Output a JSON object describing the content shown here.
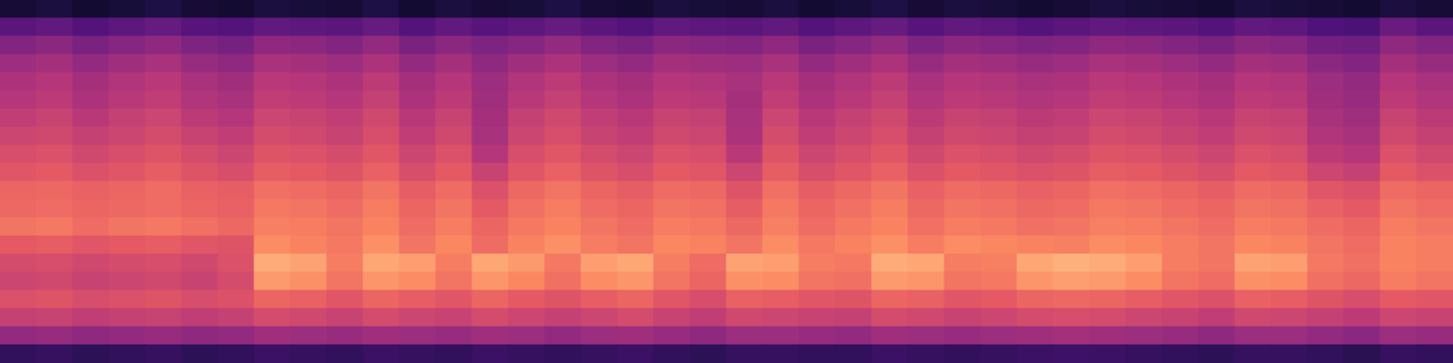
{
  "chart_data": {
    "type": "heatmap",
    "tick_labels": false,
    "zlim": [
      0,
      100
    ],
    "cells": [
      [
        10,
        12,
        9,
        11,
        13,
        10,
        9,
        12,
        11,
        10,
        13,
        9,
        12,
        10,
        11,
        13,
        10,
        9,
        12,
        11,
        10,
        12,
        9,
        11,
        13,
        10,
        12,
        11,
        9,
        10,
        12,
        11,
        10,
        9,
        12,
        11,
        10,
        9,
        12,
        10
      ],
      [
        28,
        30,
        26,
        29,
        31,
        27,
        26,
        30,
        29,
        28,
        31,
        26,
        30,
        27,
        29,
        31,
        28,
        26,
        30,
        29,
        28,
        30,
        26,
        29,
        31,
        27,
        30,
        29,
        26,
        28,
        30,
        29,
        28,
        26,
        30,
        29,
        25,
        24,
        32,
        28
      ],
      [
        38,
        40,
        36,
        39,
        41,
        37,
        35,
        41,
        40,
        38,
        42,
        36,
        40,
        37,
        39,
        42,
        38,
        36,
        40,
        39,
        38,
        41,
        36,
        39,
        42,
        37,
        40,
        39,
        37,
        38,
        41,
        40,
        38,
        36,
        40,
        39,
        34,
        33,
        41,
        38
      ],
      [
        44,
        46,
        42,
        45,
        47,
        43,
        41,
        47,
        46,
        44,
        48,
        42,
        46,
        41,
        45,
        48,
        44,
        42,
        46,
        45,
        44,
        47,
        42,
        45,
        48,
        43,
        46,
        45,
        43,
        44,
        47,
        46,
        44,
        42,
        46,
        45,
        40,
        38,
        46,
        43
      ],
      [
        48,
        50,
        46,
        49,
        51,
        47,
        45,
        51,
        50,
        48,
        52,
        46,
        50,
        44,
        49,
        52,
        48,
        46,
        50,
        49,
        47,
        51,
        46,
        49,
        52,
        47,
        50,
        49,
        47,
        48,
        51,
        50,
        48,
        46,
        50,
        49,
        44,
        42,
        50,
        47
      ],
      [
        50,
        52,
        48,
        51,
        53,
        49,
        47,
        53,
        52,
        50,
        54,
        48,
        52,
        45,
        51,
        54,
        50,
        48,
        52,
        51,
        46,
        53,
        48,
        51,
        54,
        49,
        52,
        51,
        49,
        50,
        53,
        52,
        50,
        48,
        52,
        51,
        45,
        43,
        52,
        49
      ],
      [
        53,
        55,
        51,
        54,
        56,
        52,
        50,
        56,
        55,
        53,
        57,
        51,
        55,
        46,
        54,
        57,
        53,
        51,
        55,
        54,
        47,
        56,
        51,
        54,
        57,
        52,
        55,
        54,
        52,
        53,
        56,
        55,
        53,
        51,
        55,
        54,
        47,
        45,
        55,
        52
      ],
      [
        56,
        57,
        54,
        56,
        58,
        55,
        53,
        58,
        57,
        55,
        59,
        53,
        57,
        47,
        56,
        59,
        55,
        53,
        57,
        56,
        48,
        58,
        53,
        56,
        59,
        54,
        57,
        56,
        54,
        55,
        58,
        57,
        55,
        53,
        57,
        56,
        49,
        47,
        57,
        54
      ],
      [
        59,
        60,
        57,
        59,
        61,
        58,
        56,
        61,
        60,
        58,
        62,
        56,
        60,
        50,
        59,
        62,
        58,
        56,
        60,
        59,
        51,
        61,
        56,
        59,
        62,
        57,
        60,
        59,
        57,
        58,
        61,
        60,
        58,
        56,
        60,
        59,
        52,
        50,
        60,
        57
      ],
      [
        62,
        63,
        60,
        62,
        64,
        61,
        59,
        64,
        63,
        61,
        65,
        59,
        63,
        55,
        62,
        65,
        61,
        59,
        63,
        62,
        56,
        64,
        59,
        62,
        65,
        60,
        63,
        62,
        60,
        61,
        64,
        63,
        61,
        59,
        63,
        62,
        56,
        54,
        63,
        60
      ],
      [
        66,
        67,
        65,
        66,
        68,
        65,
        64,
        69,
        68,
        66,
        70,
        64,
        68,
        60,
        67,
        70,
        66,
        64,
        68,
        67,
        61,
        69,
        64,
        67,
        70,
        65,
        68,
        67,
        65,
        66,
        69,
        68,
        66,
        64,
        68,
        67,
        62,
        60,
        68,
        66
      ],
      [
        67,
        68,
        66,
        67,
        68,
        66,
        65,
        71,
        70,
        68,
        72,
        66,
        70,
        63,
        69,
        72,
        68,
        66,
        70,
        69,
        64,
        71,
        66,
        69,
        72,
        67,
        70,
        69,
        67,
        68,
        71,
        70,
        68,
        66,
        70,
        69,
        65,
        63,
        70,
        68
      ],
      [
        70,
        71,
        68,
        70,
        71,
        69,
        67,
        73,
        72,
        70,
        74,
        68,
        72,
        66,
        71,
        74,
        70,
        68,
        72,
        71,
        67,
        73,
        68,
        71,
        74,
        69,
        72,
        71,
        69,
        70,
        73,
        72,
        70,
        68,
        72,
        71,
        68,
        66,
        72,
        70
      ],
      [
        63,
        64,
        62,
        63,
        64,
        62,
        61,
        76,
        74,
        71,
        77,
        70,
        75,
        68,
        74,
        77,
        72,
        70,
        75,
        74,
        70,
        76,
        71,
        74,
        77,
        72,
        76,
        75,
        74,
        73,
        76,
        75,
        72,
        70,
        75,
        74,
        70,
        68,
        74,
        72
      ],
      [
        58,
        59,
        57,
        58,
        59,
        57,
        60,
        83,
        81,
        72,
        82,
        80,
        72,
        82,
        79,
        71,
        80,
        82,
        72,
        68,
        81,
        80,
        72,
        71,
        83,
        82,
        72,
        73,
        82,
        84,
        83,
        80,
        72,
        70,
        81,
        80,
        71,
        69,
        74,
        72
      ],
      [
        56,
        57,
        55,
        56,
        57,
        55,
        58,
        79,
        77,
        70,
        78,
        76,
        70,
        78,
        75,
        69,
        76,
        78,
        70,
        66,
        77,
        76,
        70,
        69,
        79,
        78,
        70,
        71,
        78,
        80,
        79,
        76,
        70,
        68,
        77,
        76,
        69,
        67,
        72,
        70
      ],
      [
        60,
        61,
        59,
        60,
        61,
        59,
        60,
        66,
        65,
        62,
        66,
        64,
        62,
        66,
        63,
        61,
        64,
        66,
        62,
        59,
        65,
        64,
        62,
        61,
        66,
        65,
        62,
        63,
        66,
        67,
        66,
        64,
        62,
        60,
        65,
        64,
        61,
        59,
        63,
        62
      ],
      [
        54,
        55,
        53,
        54,
        55,
        53,
        54,
        58,
        57,
        55,
        58,
        56,
        55,
        58,
        56,
        54,
        56,
        58,
        55,
        53,
        57,
        56,
        55,
        54,
        58,
        57,
        55,
        56,
        58,
        59,
        58,
        56,
        55,
        53,
        57,
        56,
        54,
        52,
        56,
        55
      ],
      [
        42,
        43,
        41,
        42,
        43,
        41,
        42,
        45,
        44,
        43,
        45,
        44,
        43,
        45,
        44,
        42,
        44,
        45,
        43,
        41,
        44,
        44,
        43,
        42,
        45,
        44,
        43,
        44,
        45,
        46,
        45,
        44,
        43,
        41,
        44,
        44,
        42,
        40,
        44,
        43
      ],
      [
        18,
        19,
        17,
        18,
        19,
        17,
        18,
        20,
        19,
        18,
        20,
        19,
        18,
        20,
        19,
        18,
        19,
        20,
        18,
        17,
        19,
        19,
        18,
        18,
        20,
        19,
        18,
        19,
        20,
        21,
        20,
        19,
        18,
        17,
        19,
        19,
        18,
        16,
        19,
        18
      ]
    ]
  }
}
